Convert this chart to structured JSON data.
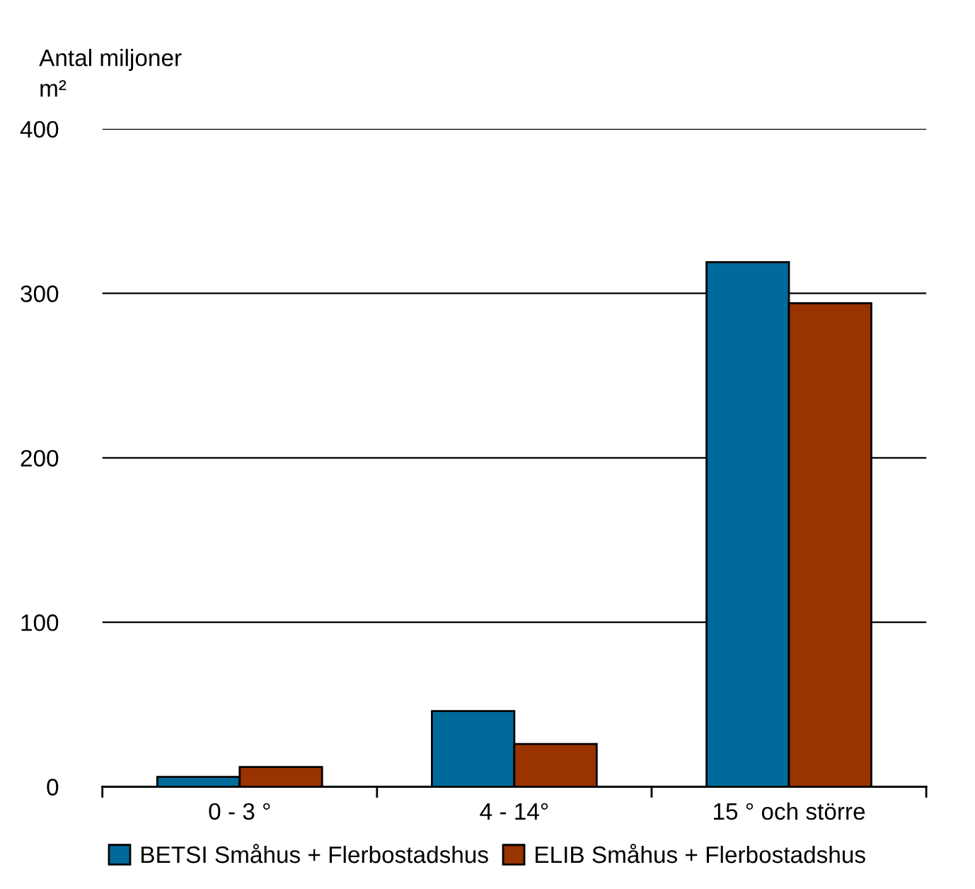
{
  "chart_data": {
    "type": "bar",
    "ylabel": "Antal miljoner\nm²",
    "categories": [
      "0 - 3 °",
      "4 - 14°",
      "15 ° och större"
    ],
    "series": [
      {
        "name": "BETSI Småhus + Flerbostadshus",
        "color": "#006b9a",
        "values": [
          6,
          46,
          319
        ]
      },
      {
        "name": "ELIB Småhus + Flerbostadshus",
        "color": "#993300",
        "values": [
          12,
          26,
          294
        ]
      }
    ],
    "ylim": [
      0,
      400
    ],
    "yticks": [
      0,
      100,
      200,
      300,
      400
    ],
    "grid": "y",
    "legend": "bottom"
  }
}
